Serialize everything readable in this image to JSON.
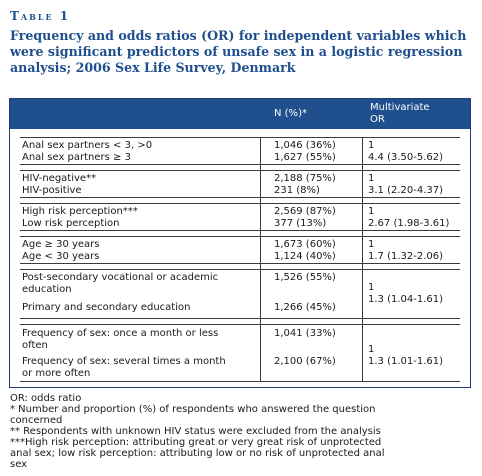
{
  "table_label": "Table 1",
  "caption": "Frequency and odds ratios (OR) for independent variables which were significant predictors of unsafe sex in a logistic regression analysis; 2006 Sex Life Survey, Denmark",
  "header": {
    "col_n": "N (%)*",
    "col_mv_line1": "Multivariate",
    "col_mv_line2": "OR"
  },
  "rows": [
    {
      "v1": "Anal sex partners < 3, >0",
      "v2": "Anal sex partners ≥ 3",
      "n1": "1,046 (36%)",
      "n2": "1,627 (55%)",
      "or1": "1",
      "or2": "4.4 (3.50-5.62)"
    },
    {
      "v1": "HIV-negative**",
      "v2": "HIV-positive",
      "n1": "2,188 (75%)",
      "n2": "231 (8%)",
      "or1": "1",
      "or2": "3.1 (2.20-4.37)"
    },
    {
      "v1": "High risk perception***",
      "v2": "Low risk perception",
      "n1": "2,569 (87%)",
      "n2": "377 (13%)",
      "or1": "1",
      "or2": "2.67 (1.98-3.61)"
    },
    {
      "v1": "Age ≥ 30 years",
      "v2": "Age < 30 years",
      "n1": "1,673 (60%)",
      "n2": "1,124 (40%)",
      "or1": "1",
      "or2": "1.7 (1.32-2.06)"
    },
    {
      "v1a": "Post-secondary vocational or academic",
      "v1b": "education",
      "v2": "Primary and secondary education",
      "n1": "1,526 (55%)",
      "n2": "1,266 (45%)",
      "or1": "1",
      "or2": "1.3 (1.04-1.61)"
    },
    {
      "v1a": "Frequency of sex: once a month or less",
      "v1b": "often",
      "v2a": "Frequency of sex: several times a month",
      "v2b": "or more often",
      "n1": "1,041 (33%)",
      "n2": "2,100 (67%)",
      "or1": "1",
      "or2": "1.3 (1.01-1.61)"
    }
  ],
  "footnotes": {
    "f1": "OR: odds ratio",
    "f2a": "* Number and proportion (%) of respondents who answered the question",
    "f2b": "concerned",
    "f3": "** Respondents with unknown HIV status were excluded from the analysis",
    "f4a": "***High risk perception: attributing great or very great risk of unprotected",
    "f4b": "anal sex; low risk perception: attributing low or no risk of unprotected anal",
    "f4c": "sex"
  }
}
